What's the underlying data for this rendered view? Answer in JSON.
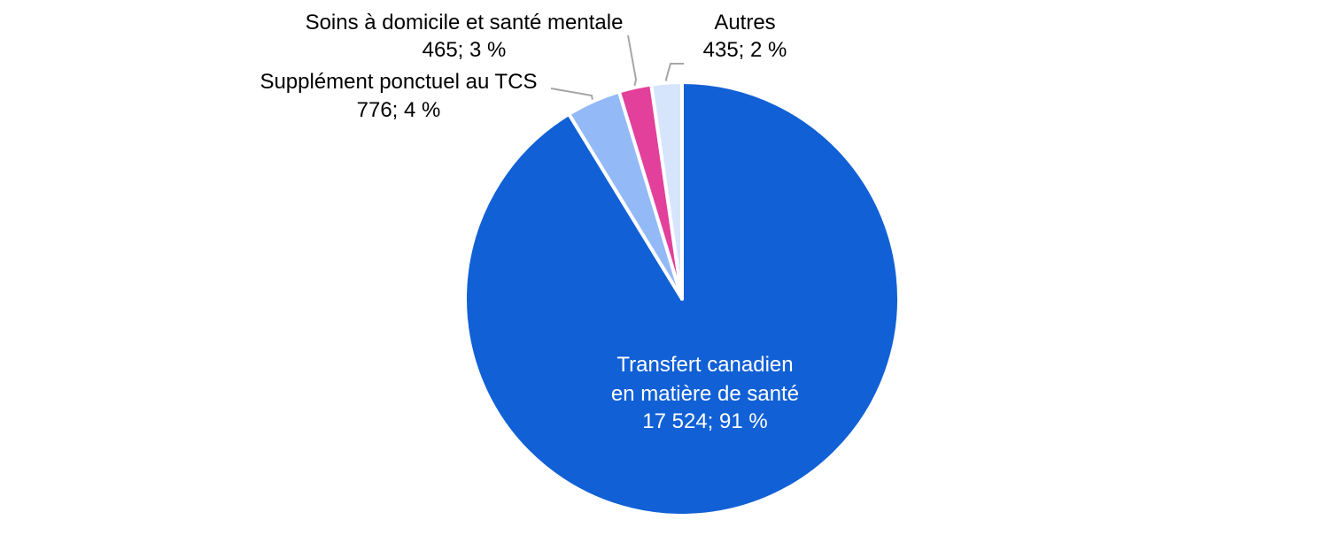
{
  "chart_data": {
    "type": "pie",
    "title": "",
    "slices": [
      {
        "name": "Transfert canadien en matière de santé",
        "label_lines": [
          "Transfert canadien",
          "en matière de santé",
          "17 524; 91 %"
        ],
        "value": 17524,
        "percent": 91,
        "color": "#1160d6"
      },
      {
        "name": "Supplément ponctuel au TCS",
        "label_lines": [
          "Supplément ponctuel au TCS",
          "776; 4 %"
        ],
        "value": 776,
        "percent": 4,
        "color": "#94b9f7"
      },
      {
        "name": "Soins à domicile et santé mentale",
        "label_lines": [
          "Soins à domicile et santé mentale",
          "465; 3 %"
        ],
        "value": 465,
        "percent": 3,
        "color": "#e2409a"
      },
      {
        "name": "Autres",
        "label_lines": [
          "Autres",
          "435; 2 %"
        ],
        "value": 435,
        "percent": 2,
        "color": "#d6e5fc"
      }
    ],
    "legend": "none",
    "start_angle": "12 o'clock",
    "direction": "clockwise",
    "label_style": "outside labels with leader lines; largest slice labelled inside"
  }
}
